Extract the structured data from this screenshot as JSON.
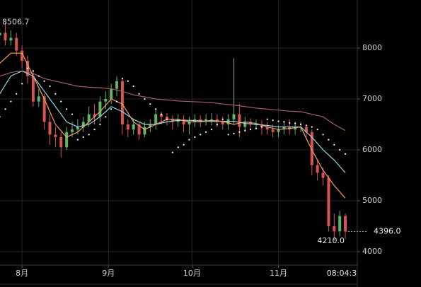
{
  "chart_data": {
    "type": "candlestick",
    "xlim": [
      -7.9,
      120.3
    ],
    "ylim": [
      3736,
      8944
    ],
    "yticks": [
      4000,
      5000,
      6000,
      7000,
      8000
    ],
    "xticks": [
      {
        "value": 0,
        "label": "8月"
      },
      {
        "value": 31,
        "label": "9月"
      },
      {
        "value": 61,
        "label": "10月"
      },
      {
        "value": 92,
        "label": "11月"
      }
    ],
    "grid": true,
    "up_color": "#5fb563",
    "down_color": "#d9534f",
    "x": [
      -8,
      -6,
      -4,
      -2,
      0,
      2,
      4,
      6,
      8,
      10,
      12,
      14,
      16,
      18,
      20,
      22,
      24,
      26,
      28,
      30,
      32,
      34,
      36,
      38,
      40,
      42,
      44,
      46,
      48,
      50,
      52,
      54,
      56,
      58,
      60,
      62,
      64,
      66,
      68,
      70,
      72,
      74,
      76,
      78,
      80,
      82,
      84,
      86,
      88,
      90,
      92,
      94,
      96,
      98,
      100,
      102,
      104,
      106,
      108,
      110,
      112,
      114,
      116
    ],
    "open": [
      8250,
      8300,
      8150,
      8200,
      7950,
      7750,
      7450,
      6950,
      7050,
      6550,
      6300,
      6250,
      6050,
      6350,
      6400,
      6450,
      6550,
      6700,
      6650,
      6950,
      7000,
      7200,
      7350,
      6500,
      6400,
      6500,
      6300,
      6450,
      6500,
      6700,
      6650,
      6600,
      6550,
      6600,
      6500,
      6550,
      6600,
      6550,
      6600,
      6600,
      6550,
      6500,
      6600,
      6700,
      6450,
      6550,
      6500,
      6500,
      6450,
      6400,
      6350,
      6400,
      6450,
      6400,
      6450,
      6450,
      6350,
      5700,
      5550,
      5450,
      4500,
      4400,
      4700
    ],
    "high": [
      8400,
      8506.7,
      8350,
      8300,
      8050,
      7850,
      7550,
      7200,
      7100,
      6700,
      6450,
      6350,
      6450,
      6550,
      6600,
      6650,
      6850,
      6900,
      7050,
      7150,
      7300,
      7450,
      7400,
      6600,
      6600,
      6550,
      6550,
      6600,
      6800,
      6750,
      6720,
      6680,
      6700,
      6680,
      6650,
      6700,
      6680,
      6700,
      6720,
      6700,
      6650,
      6700,
      7800,
      6900,
      6650,
      6620,
      6600,
      6580,
      6550,
      6500,
      6480,
      6550,
      6600,
      6550,
      6550,
      6500,
      6400,
      5800,
      5650,
      5500,
      4750,
      4800,
      4750
    ],
    "low": [
      8150,
      8050,
      8050,
      7850,
      7600,
      7300,
      6850,
      6850,
      6400,
      6100,
      6050,
      5850,
      6000,
      6250,
      6300,
      6350,
      6450,
      6500,
      6550,
      6800,
      6900,
      7050,
      6300,
      6250,
      6300,
      6200,
      6250,
      6350,
      6400,
      6500,
      6480,
      6400,
      6450,
      6350,
      6300,
      6450,
      6450,
      6480,
      6480,
      6450,
      6400,
      6400,
      6500,
      6250,
      6350,
      6400,
      6400,
      6300,
      6300,
      6250,
      6250,
      6300,
      6300,
      6300,
      6350,
      6200,
      5500,
      5400,
      5300,
      4400,
      4210,
      4300,
      4250
    ],
    "close": [
      8300,
      8150,
      8200,
      7950,
      7750,
      7450,
      6950,
      7050,
      6550,
      6300,
      6250,
      6050,
      6350,
      6400,
      6450,
      6550,
      6700,
      6650,
      6950,
      7000,
      7200,
      7350,
      6500,
      6400,
      6500,
      6300,
      6450,
      6500,
      6700,
      6650,
      6600,
      6550,
      6600,
      6500,
      6550,
      6600,
      6550,
      6600,
      6600,
      6550,
      6500,
      6600,
      6700,
      6450,
      6550,
      6500,
      6500,
      6450,
      6400,
      6350,
      6400,
      6450,
      6400,
      6450,
      6450,
      6350,
      5700,
      5550,
      5450,
      4500,
      4400,
      4700,
      4396
    ],
    "lines": [
      {
        "color": "#a85a66",
        "x": [
          -8,
          -4,
          0,
          4,
          8,
          12,
          16,
          20,
          24,
          28,
          32,
          36,
          40,
          44,
          48,
          52,
          56,
          60,
          64,
          68,
          72,
          76,
          80,
          84,
          88,
          92,
          96,
          100,
          104,
          108,
          112,
          116
        ],
        "values": [
          7450,
          7520,
          7550,
          7500,
          7400,
          7350,
          7300,
          7250,
          7230,
          7220,
          7200,
          7150,
          7080,
          7040,
          7000,
          6980,
          6960,
          6950,
          6940,
          6930,
          6900,
          6880,
          6850,
          6820,
          6800,
          6780,
          6760,
          6750,
          6700,
          6650,
          6500,
          6380
        ]
      },
      {
        "color": "#8fd6ea",
        "x": [
          -8,
          -4,
          0,
          4,
          8,
          12,
          16,
          20,
          24,
          28,
          32,
          36,
          40,
          44,
          48,
          52,
          56,
          60,
          64,
          68,
          72,
          76,
          80,
          84,
          88,
          92,
          96,
          100,
          104,
          108,
          112,
          116
        ],
        "values": [
          7100,
          7450,
          7550,
          7450,
          7150,
          6850,
          6550,
          6450,
          6500,
          6650,
          6850,
          6750,
          6600,
          6500,
          6500,
          6550,
          6580,
          6580,
          6570,
          6560,
          6560,
          6560,
          6520,
          6500,
          6480,
          6450,
          6450,
          6450,
          6250,
          6000,
          5800,
          5550
        ]
      },
      {
        "color": "#f0a068",
        "x": [
          -8,
          -4,
          0,
          4,
          8,
          12,
          16,
          20,
          24,
          28,
          32,
          36,
          40,
          44,
          48,
          52,
          56,
          60,
          64,
          68,
          72,
          76,
          80,
          84,
          88,
          92,
          96,
          100,
          104,
          108,
          112,
          116
        ],
        "values": [
          7700,
          7900,
          7900,
          7450,
          7000,
          6500,
          6250,
          6350,
          6550,
          6750,
          7000,
          6900,
          6550,
          6400,
          6500,
          6600,
          6600,
          6550,
          6550,
          6580,
          6560,
          6500,
          6550,
          6520,
          6450,
          6400,
          6420,
          6450,
          6000,
          5600,
          5300,
          5050
        ]
      }
    ],
    "sar": {
      "color": "#ffffff",
      "x": [
        -8,
        -6,
        -4,
        -2,
        0,
        2,
        4,
        6,
        8,
        10,
        12,
        14,
        16,
        18,
        20,
        22,
        24,
        26,
        28,
        30,
        32,
        34,
        36,
        38,
        40,
        42,
        44,
        46,
        48,
        50,
        52,
        54,
        56,
        58,
        60,
        62,
        64,
        66,
        68,
        70,
        72,
        74,
        76,
        78,
        80,
        82,
        84,
        86,
        88,
        90,
        92,
        94,
        96,
        98,
        100,
        102,
        104,
        106,
        108,
        110,
        112,
        114,
        116
      ],
      "values": [
        6650,
        6800,
        6950,
        7100,
        7300,
        7600,
        7550,
        7450,
        7350,
        7250,
        7100,
        6950,
        6800,
        6700,
        6200,
        6250,
        6300,
        6400,
        6500,
        6650,
        6800,
        6950,
        7400,
        7350,
        7250,
        7100,
        7000,
        6900,
        6800,
        6700,
        6600,
        5950,
        6050,
        6100,
        6200,
        6250,
        6300,
        6350,
        6400,
        6500,
        6600,
        6300,
        6320,
        6350,
        6380,
        6400,
        6420,
        6450,
        6600,
        6580,
        6560,
        6550,
        6530,
        6520,
        6500,
        6480,
        6450,
        6400,
        6300,
        6200,
        6100,
        6000,
        5920
      ]
    },
    "high_marker": {
      "value": 8506.7,
      "label": "8506.7"
    },
    "low_marker": {
      "value": 4210,
      "label": "4210.0"
    },
    "last_price": {
      "value": 4396,
      "label": "4396.0"
    },
    "time_label": "08:04:3"
  }
}
